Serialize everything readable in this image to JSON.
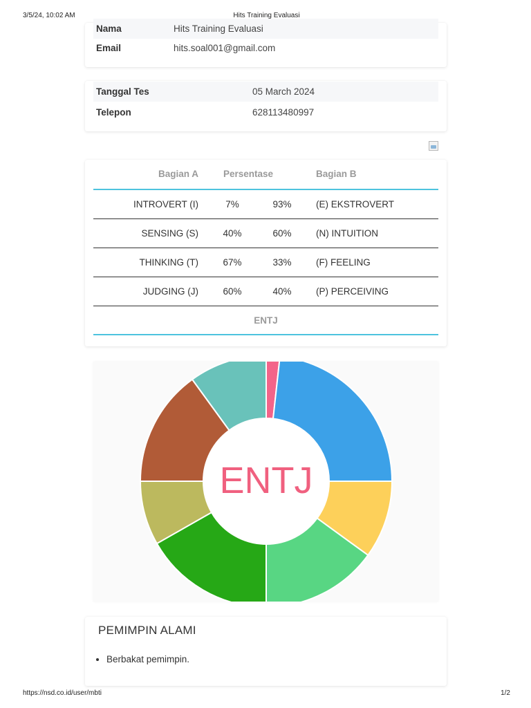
{
  "print_header": {
    "date": "3/5/24, 10:02 AM",
    "title": "Hits Training Evaluasi"
  },
  "print_footer": {
    "url": "https://nsd.co.id/user/mbti",
    "page": "1/2"
  },
  "profile": {
    "nama_label": "Nama",
    "nama_value": "Hits Training Evaluasi",
    "email_label": "Email",
    "email_value": "hits.soal001@gmail.com",
    "tanggal_label": "Tanggal Tes",
    "tanggal_value": "05 March 2024",
    "telepon_label": "Telepon",
    "telepon_value": "628113480997"
  },
  "mbti_table": {
    "headers": {
      "bagian_a": "Bagian A",
      "persentase": "Persentase",
      "bagian_b": "Bagian B"
    },
    "rows": [
      {
        "left": "INTROVERT (I)",
        "left_pct": "7%",
        "right_pct": "93%",
        "right": "(E) EKSTROVERT"
      },
      {
        "left": "SENSING (S)",
        "left_pct": "40%",
        "right_pct": "60%",
        "right": "(N) INTUITION"
      },
      {
        "left": "THINKING (T)",
        "left_pct": "67%",
        "right_pct": "33%",
        "right": "(F) FEELING"
      },
      {
        "left": "JUDGING (J)",
        "left_pct": "60%",
        "right_pct": "40%",
        "right": "(P) PERCEIVING"
      }
    ],
    "result": "ENTJ"
  },
  "chart_data": {
    "type": "pie",
    "variant": "doughnut",
    "center_label": "ENTJ",
    "center_label_color": "#f0607f",
    "slice_values": [
      7,
      93,
      40,
      60,
      67,
      33,
      60,
      40
    ],
    "slice_colors": [
      "#f3648a",
      "#3ca1e8",
      "#fdd05a",
      "#58d683",
      "#26a816",
      "#bcb95e",
      "#b15b37",
      "#69c2ba"
    ]
  },
  "description": {
    "title": "PEMIMPIN ALAMI",
    "items": [
      "Berbakat pemimpin."
    ]
  }
}
